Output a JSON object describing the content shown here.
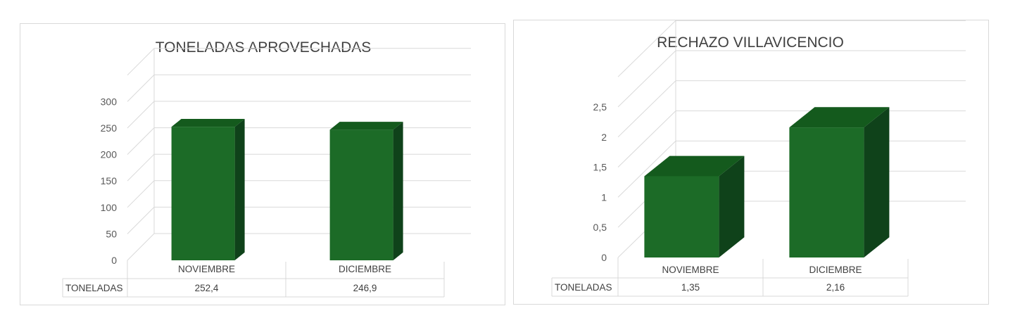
{
  "colors": {
    "bar_front": "#1c6b27",
    "bar_top": "#145a1d",
    "bar_side": "#0f421a",
    "grid": "#d9d9d9",
    "text": "#404040"
  },
  "chart_data": [
    {
      "type": "bar",
      "title": "TONELADAS APROVECHADAS",
      "categories": [
        "NOVIEMBRE",
        "DICIEMBRE"
      ],
      "series": [
        {
          "name": "TONELADAS",
          "values": [
            252.4,
            246.9
          ]
        }
      ],
      "value_labels": [
        "252,4",
        "246,9"
      ],
      "yticks": [
        "0",
        "50",
        "100",
        "150",
        "200",
        "250",
        "300"
      ],
      "ylim": [
        0,
        350
      ],
      "xlabel": "",
      "ylabel": "",
      "grid": true,
      "data_table": true
    },
    {
      "type": "bar",
      "title": "RECHAZO VILLAVICENCIO",
      "categories": [
        "NOVIEMBRE",
        "DICIEMBRE"
      ],
      "series": [
        {
          "name": "TONELADAS",
          "values": [
            1.35,
            2.16
          ]
        }
      ],
      "value_labels": [
        "1,35",
        "2,16"
      ],
      "yticks": [
        "0",
        "0,5",
        "1",
        "1,5",
        "2",
        "2,5"
      ],
      "ylim": [
        0,
        3
      ],
      "xlabel": "",
      "ylabel": "",
      "grid": true,
      "data_table": true
    }
  ]
}
